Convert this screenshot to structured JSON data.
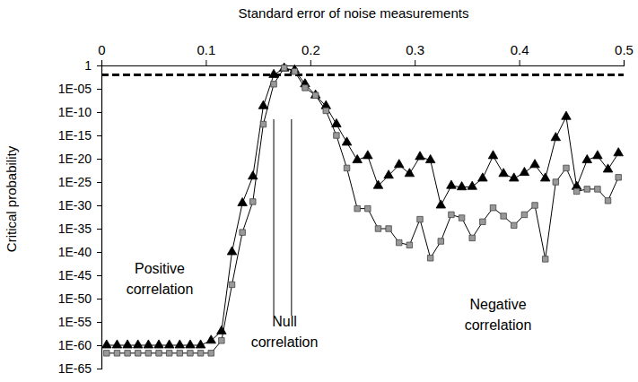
{
  "chart_data": {
    "type": "line",
    "x_label": "Standard error of noise measurements",
    "y_label": "Critical probability",
    "log": "y",
    "xlim": [
      0,
      0.5
    ],
    "xticks": [
      0,
      0.1,
      0.2,
      0.3,
      0.4,
      0.5
    ],
    "ylim": [
      1e-65,
      1
    ],
    "yticks": [
      1,
      {
        "value": 1e-05,
        "label": "1E-05"
      },
      {
        "value": 1e-10,
        "label": "1E-10"
      },
      {
        "value": 1e-15,
        "label": "1E-15"
      },
      {
        "value": 1e-20,
        "label": "1E-20"
      },
      {
        "value": 1e-25,
        "label": "1E-25"
      },
      {
        "value": 1e-30,
        "label": "1E-30"
      },
      {
        "value": 1e-35,
        "label": "1E-35"
      },
      {
        "value": 1e-40,
        "label": "1E-40"
      },
      {
        "value": 1e-45,
        "label": "1E-45"
      },
      {
        "value": 1e-50,
        "label": "1E-50"
      },
      {
        "value": 1e-55,
        "label": "1E-55"
      },
      {
        "value": 1e-60,
        "label": "1E-60"
      },
      {
        "value": 1e-65,
        "label": "1E-65"
      }
    ],
    "x": [
      0.005,
      0.015,
      0.025,
      0.035,
      0.045,
      0.055,
      0.065,
      0.075,
      0.085,
      0.095,
      0.105,
      0.115,
      0.125,
      0.135,
      0.145,
      0.155,
      0.165,
      0.175,
      0.185,
      0.195,
      0.205,
      0.215,
      0.225,
      0.235,
      0.245,
      0.255,
      0.265,
      0.275,
      0.285,
      0.295,
      0.305,
      0.315,
      0.325,
      0.335,
      0.345,
      0.355,
      0.365,
      0.375,
      0.385,
      0.395,
      0.405,
      0.415,
      0.425,
      0.435,
      0.445,
      0.455,
      0.465,
      0.475,
      0.485,
      0.495
    ],
    "series": [
      {
        "color": "#000000",
        "marker": "triangle",
        "line_style": "solid",
        "values": [
          1e-60,
          1e-60,
          1e-60,
          1e-60,
          1e-60,
          1e-60,
          1e-60,
          1e-60,
          1e-60,
          1e-60,
          1e-59,
          1e-57,
          1e-40,
          3e-30,
          1.6e-24,
          2e-09,
          0.01,
          0.25,
          0.1,
          0.0001,
          4e-07,
          2e-09,
          2.5e-13,
          3e-17,
          5e-21,
          4e-20,
          1.6e-26,
          2.5e-24,
          5e-22,
          6e-24,
          2.5e-20,
          5e-21,
          1e-30,
          1.6e-26,
          8e-27,
          1e-26,
          6e-25,
          4e-20,
          6e-24,
          6e-25,
          1e-23,
          5e-22,
          6e-25,
          3e-16,
          1e-11,
          1e-26,
          5e-21,
          4e-20,
          5e-23,
          1.6e-19
        ]
      },
      {
        "color": "#999999",
        "marker": "square",
        "line_style": "solid",
        "values": [
          2e-62,
          2e-62,
          2e-62,
          2e-62,
          2e-62,
          2e-62,
          2e-62,
          2e-62,
          2e-62,
          2e-62,
          2e-62,
          1e-59,
          1e-47,
          1.6e-36,
          6e-30,
          2.5e-13,
          0.0001,
          0.3,
          0.05,
          1.6e-05,
          4e-07,
          2e-10,
          1e-15,
          1e-22,
          2e-31,
          2e-31,
          1e-35,
          1e-35,
          1e-38,
          3e-39,
          1e-33,
          5e-42,
          2e-38,
          1e-32,
          2e-33,
          1e-37,
          3e-34,
          3e-31,
          5e-33,
          5e-35,
          1e-32,
          1e-30,
          3e-42,
          1e-25,
          1e-22,
          1e-27,
          3e-27,
          3e-27,
          1e-29,
          1e-24
        ]
      }
    ],
    "reference_line": 0.01,
    "null_band": [
      0.165,
      0.182
    ],
    "annotations": [
      "Positive correlation",
      "Null correlation",
      "Negative correlation"
    ]
  }
}
